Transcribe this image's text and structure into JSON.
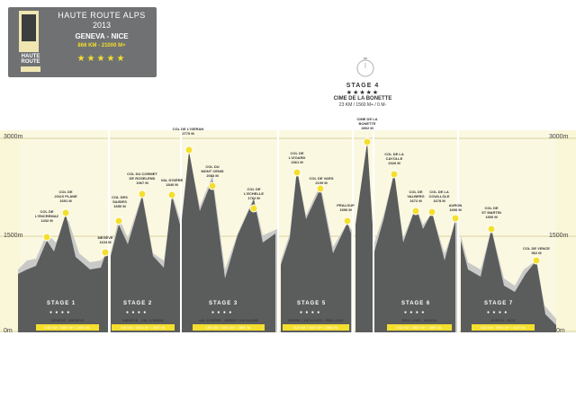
{
  "header": {
    "logo_text": "HAUTE\nROUTE",
    "title": "HAUTE ROUTE ALPS",
    "year": "2013",
    "route": "GENEVA - NICE",
    "stats_km": "866 KM",
    "stats_sep": " - ",
    "stats_m": "21000 M+",
    "stars": "★★★★★"
  },
  "axis": {
    "y_top": "3000m",
    "y_mid": "1500m",
    "y_bottom": "0m"
  },
  "highlight_stage": {
    "title": "STAGE 4",
    "stars": "★★★★★",
    "name": "CIME DE LA BONETTE",
    "stats": "23 KM / 1560 M+ / 0 M-"
  },
  "colors": {
    "profile": "#595b5a",
    "shadow": "#c9cac8",
    "accent": "#f5df2e",
    "band": "#f7f2c9",
    "header_bg": "#6f7172"
  },
  "stages": [
    {
      "title": "STAGE 1",
      "name": "GENÈVE - MEGÈVE",
      "stats": "140 KM / 3300 M+ / 2600 M-"
    },
    {
      "title": "STAGE 2",
      "name": "MEGÈVE - VAL D'ISÈRE",
      "stats": "108 KM / 3400 M+ / 2600 M-"
    },
    {
      "title": "STAGE 3",
      "name": "VAL D'ISÈRE - SERRE CHEVALIER",
      "stats": "156 KM / 3400 M+ / 3800 M-"
    },
    {
      "title": "STAGE 5",
      "name": "SERRE CHEVALIER - PRA LOUP",
      "stats": "118 KM / 3000 M+ / 2800 M-"
    },
    {
      "title": "STAGE 6",
      "name": "PRA LOUP - AURON",
      "stats": "142 KM / 3800 M+ / 3800 M-"
    },
    {
      "title": "STAGE 7",
      "name": "AURON - NICE",
      "stats": "162 KM / 2900 M+ / 4100 M-"
    }
  ],
  "passes": [
    {
      "name": "COL DE\nL'ENCREMAZ",
      "alt": "1432 M"
    },
    {
      "name": "COL DE\nJOUX PLANE",
      "alt": "1691 M"
    },
    {
      "name": "MEGÈVE",
      "alt": "1104 M"
    },
    {
      "name": "COL DES\nSAISIES",
      "alt": "1650 M"
    },
    {
      "name": "COL DU CORMET\nDE ROSELEND",
      "alt": "1967 M"
    },
    {
      "name": "VAL D'ISÈRE",
      "alt": "1840 M"
    },
    {
      "name": "COL DE L'ISERAN",
      "alt": "2770 M"
    },
    {
      "name": "COL DU\nMONT CENIS",
      "alt": "2083 M"
    },
    {
      "name": "COL DE\nL'ECHELLE",
      "alt": "1762 M"
    },
    {
      "name": "COL DE\nL'IZOARD",
      "alt": "2361 M"
    },
    {
      "name": "COL DE VARS",
      "alt": "2109 M"
    },
    {
      "name": "PRALOUP",
      "alt": "1590 M"
    },
    {
      "name": "CIME DE LA\nBONETTE",
      "alt": "2802 M"
    },
    {
      "name": "COL DE LA\nCAYOLLE",
      "alt": "2326 M"
    },
    {
      "name": "COL DE\nVALBERG",
      "alt": "1672 M"
    },
    {
      "name": "COL DE LA\nCOUILLOLE",
      "alt": "1678 M"
    },
    {
      "name": "AURON",
      "alt": "1600 M"
    },
    {
      "name": "COL DE\nST MARTIN",
      "alt": "1500 M"
    },
    {
      "name": "COL DE VENCE",
      "alt": "962 M"
    }
  ]
}
